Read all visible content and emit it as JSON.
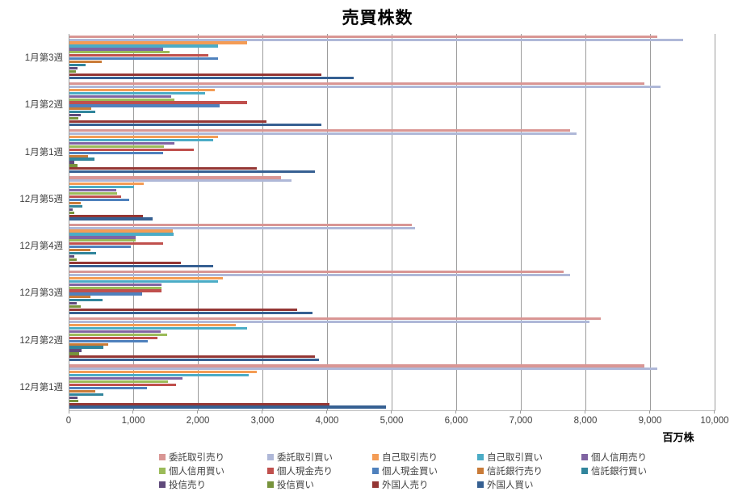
{
  "chart_data": {
    "type": "bar",
    "orientation": "horizontal",
    "title": "売買株数",
    "grid": true,
    "legend_position": "bottom",
    "x_axis": {
      "min": 0,
      "max": 10000,
      "tick_interval": 1000,
      "tick_labels": [
        "0",
        "1,000",
        "2,000",
        "3,000",
        "4,000",
        "5,000",
        "6,000",
        "7,000",
        "8,000",
        "9,000",
        "10,000"
      ],
      "unit_label": "百万株"
    },
    "categories": [
      "1月第3週",
      "1月第2週",
      "1月第1週",
      "12月第5週",
      "12月第4週",
      "12月第3週",
      "12月第2週",
      "12月第1週"
    ],
    "series": [
      {
        "name": "委託取引売り",
        "color": "#D99694",
        "values": [
          9100,
          8900,
          7750,
          3270,
          5300,
          7650,
          8230,
          8900
        ]
      },
      {
        "name": "委託取引買い",
        "color": "#AFB8D8",
        "values": [
          9500,
          9150,
          7850,
          3440,
          5350,
          7750,
          8050,
          9100
        ]
      },
      {
        "name": "自己取引売り",
        "color": "#F49C55",
        "values": [
          2750,
          2250,
          2300,
          1150,
          1600,
          2370,
          2570,
          2900
        ]
      },
      {
        "name": "自己取引買い",
        "color": "#4BACC6",
        "values": [
          2300,
          2100,
          2220,
          1000,
          1610,
          2300,
          2750,
          2770
        ]
      },
      {
        "name": "個人信用売り",
        "color": "#8064A2",
        "values": [
          1450,
          1570,
          1630,
          720,
          1020,
          1430,
          1410,
          1750
        ]
      },
      {
        "name": "個人信用買い",
        "color": "#9BBB59",
        "values": [
          1550,
          1630,
          1460,
          740,
          1030,
          1430,
          1510,
          1530
        ]
      },
      {
        "name": "個人現金売り",
        "color": "#C0504D",
        "values": [
          2150,
          2750,
          1930,
          800,
          1450,
          1430,
          1360,
          1650
        ]
      },
      {
        "name": "個人現金買い",
        "color": "#4F81BD",
        "values": [
          2300,
          2330,
          1450,
          930,
          950,
          1120,
          1210,
          1200
        ]
      },
      {
        "name": "信託銀行売り",
        "color": "#C97B38",
        "values": [
          500,
          340,
          290,
          170,
          330,
          320,
          600,
          400
        ]
      },
      {
        "name": "信託銀行買い",
        "color": "#31859C",
        "values": [
          250,
          400,
          390,
          200,
          410,
          510,
          530,
          530
        ]
      },
      {
        "name": "投信売り",
        "color": "#604A7B",
        "values": [
          120,
          170,
          80,
          55,
          80,
          115,
          185,
          120
        ]
      },
      {
        "name": "投信買い",
        "color": "#77933C",
        "values": [
          100,
          140,
          120,
          70,
          115,
          170,
          150,
          135
        ]
      },
      {
        "name": "外国人売り",
        "color": "#943634",
        "values": [
          3900,
          3050,
          2900,
          1140,
          1720,
          3520,
          3800,
          4030
        ]
      },
      {
        "name": "外国人買い",
        "color": "#366092",
        "values": [
          4400,
          3900,
          3800,
          1290,
          2230,
          3760,
          3860,
          4900
        ]
      }
    ]
  }
}
